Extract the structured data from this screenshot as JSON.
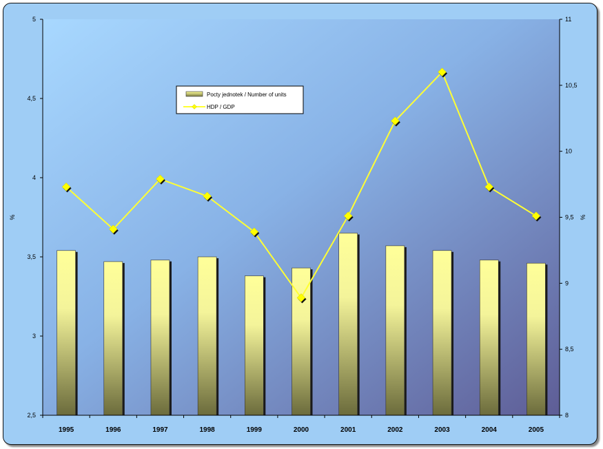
{
  "chart_data": {
    "type": "bar+line",
    "title": "",
    "categories": [
      "1995",
      "1996",
      "1997",
      "1998",
      "1999",
      "2000",
      "2001",
      "2002",
      "2003",
      "2004",
      "2005"
    ],
    "series": [
      {
        "name": "Pocty jednotek / Number of units",
        "type": "bar",
        "axis": "left",
        "values": [
          3.54,
          3.47,
          3.48,
          3.5,
          3.38,
          3.43,
          3.65,
          3.57,
          3.54,
          3.48,
          3.46
        ]
      },
      {
        "name": "HDP / GDP",
        "type": "line",
        "axis": "right",
        "values": [
          9.73,
          9.41,
          9.79,
          9.66,
          9.39,
          8.89,
          9.51,
          10.23,
          10.6,
          9.73,
          9.51
        ]
      }
    ],
    "left_axis": {
      "label": "%",
      "min": 2.5,
      "max": 5,
      "ticks": [
        "2,5",
        "3",
        "3,5",
        "4",
        "4,5",
        "5"
      ],
      "tick_values": [
        2.5,
        3,
        3.5,
        4,
        4.5,
        5
      ]
    },
    "right_axis": {
      "label": "%",
      "min": 8,
      "max": 11,
      "ticks": [
        "8",
        "8,5",
        "9",
        "9,5",
        "10",
        "10,5",
        "11"
      ],
      "tick_values": [
        8,
        8.5,
        9,
        9.5,
        10,
        10.5,
        11
      ]
    },
    "legend": {
      "position": "top-center",
      "entries": [
        "Pocty jednotek / Number of units",
        "HDP / GDP"
      ]
    },
    "grid": false,
    "colors": {
      "bar_top": "#ffff99",
      "bar_bottom": "#6b6b3c",
      "line": "#ffff33",
      "marker": "#ffff00",
      "plot_bg_start": "#a8d8ff",
      "plot_bg_end": "#5e5d96",
      "frame_bg": "#9fcdf5"
    }
  }
}
